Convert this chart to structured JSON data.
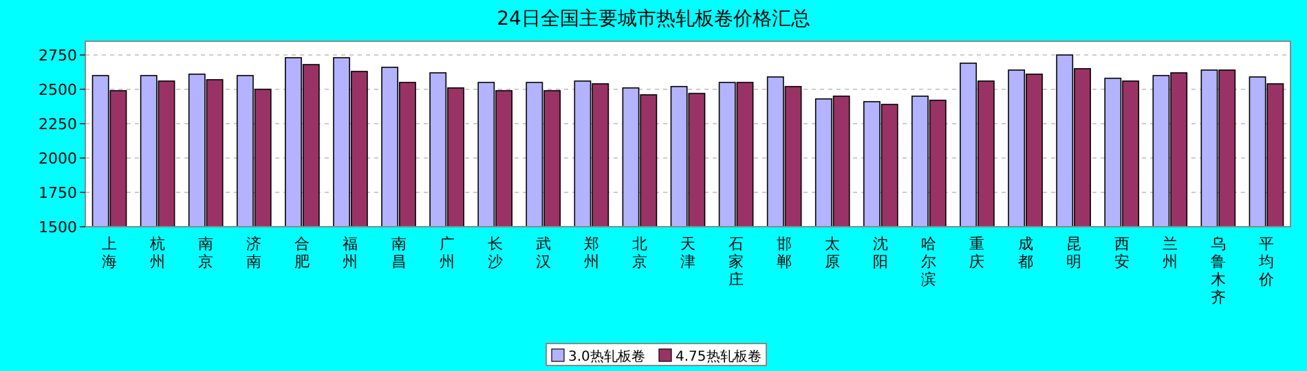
{
  "chart_data": {
    "type": "bar",
    "title": "24日全国主要城市热轧板卷价格汇总",
    "categories": [
      "上海",
      "杭州",
      "南京",
      "济南",
      "合肥",
      "福州",
      "南昌",
      "广州",
      "长沙",
      "武汉",
      "郑州",
      "北京",
      "天津",
      "石家庄",
      "邯郸",
      "太原",
      "沈阳",
      "哈尔滨",
      "重庆",
      "成都",
      "昆明",
      "西安",
      "兰州",
      "乌鲁木齐",
      "平均价"
    ],
    "series": [
      {
        "name": "3.0热轧板卷",
        "color": "#b3b3ff",
        "values": [
          2600,
          2600,
          2610,
          2600,
          2730,
          2730,
          2660,
          2620,
          2550,
          2550,
          2560,
          2510,
          2520,
          2550,
          2590,
          2430,
          2410,
          2450,
          2690,
          2640,
          2750,
          2580,
          2600,
          2640,
          2590
        ]
      },
      {
        "name": "4.75热轧板卷",
        "color": "#993366",
        "values": [
          2490,
          2560,
          2570,
          2500,
          2680,
          2630,
          2550,
          2510,
          2490,
          2490,
          2540,
          2460,
          2470,
          2550,
          2520,
          2450,
          2390,
          2420,
          2560,
          2610,
          2650,
          2560,
          2620,
          2640,
          2540
        ]
      }
    ],
    "ylim": [
      1500,
      2850
    ],
    "yticks": [
      1500,
      1750,
      2000,
      2250,
      2500,
      2750
    ],
    "grid": "y",
    "legend": "bottom"
  }
}
